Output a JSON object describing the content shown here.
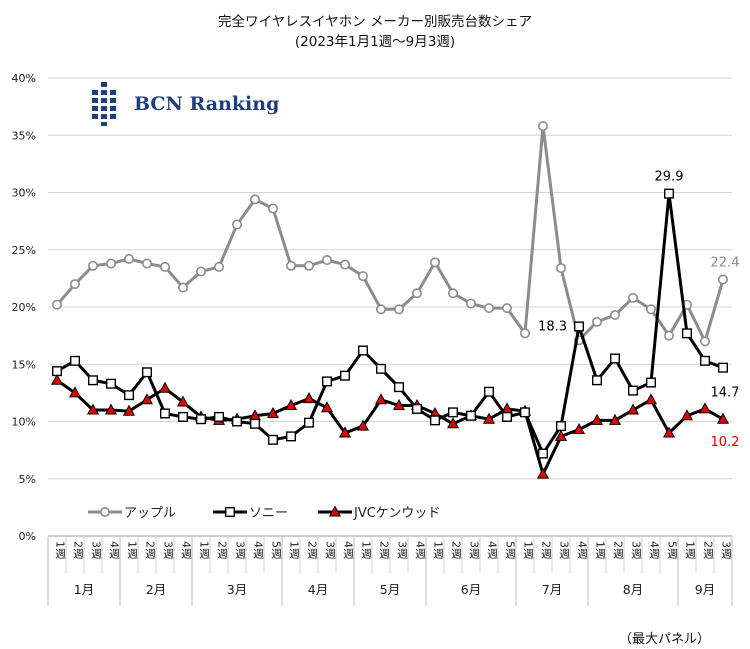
{
  "chart_data": {
    "type": "line",
    "title": "完全ワイヤレスイヤホン メーカー別販売台数シェア",
    "subtitle": "(2023年1月1週～9月3週)",
    "xlabel": "",
    "ylabel": "",
    "ylim": [
      0,
      40
    ],
    "yticks": [
      "0%",
      "5%",
      "10%",
      "15%",
      "20%",
      "25%",
      "30%",
      "35%",
      "40%"
    ],
    "grid": true,
    "legend": "lower-left",
    "week_labels": [
      "1週",
      "2週",
      "3週",
      "4週",
      "1週",
      "2週",
      "3週",
      "4週",
      "1週",
      "2週",
      "3週",
      "4週",
      "5週",
      "1週",
      "2週",
      "3週",
      "4週",
      "1週",
      "2週",
      "3週",
      "4週",
      "1週",
      "2週",
      "3週",
      "4週",
      "5週",
      "1週",
      "2週",
      "3週",
      "4週",
      "1週",
      "2週",
      "3週",
      "4週",
      "5週",
      "1週",
      "2週",
      "3週"
    ],
    "months": [
      {
        "label": "1月",
        "weeks": 4
      },
      {
        "label": "2月",
        "weeks": 4
      },
      {
        "label": "3月",
        "weeks": 5
      },
      {
        "label": "4月",
        "weeks": 4
      },
      {
        "label": "5月",
        "weeks": 4
      },
      {
        "label": "6月",
        "weeks": 5
      },
      {
        "label": "7月",
        "weeks": 4
      },
      {
        "label": "8月",
        "weeks": 5
      },
      {
        "label": "9月",
        "weeks": 3
      }
    ],
    "series": [
      {
        "name": "アップル",
        "color": "#8c8c8c",
        "marker": "circle",
        "values": [
          20.2,
          22.0,
          23.6,
          23.8,
          24.2,
          23.8,
          23.5,
          21.7,
          23.1,
          23.5,
          27.2,
          29.4,
          28.6,
          23.6,
          23.6,
          24.1,
          23.7,
          22.7,
          19.8,
          19.8,
          21.2,
          23.9,
          21.2,
          20.3,
          19.9,
          19.9,
          17.7,
          35.8,
          23.4,
          17.1,
          18.7,
          19.3,
          20.8,
          19.8,
          17.5,
          20.2,
          17.0,
          22.4
        ]
      },
      {
        "name": "ソニー",
        "color": "#000000",
        "marker": "square",
        "values": [
          14.4,
          15.3,
          13.6,
          13.3,
          12.3,
          14.3,
          10.7,
          10.4,
          10.2,
          10.4,
          10.0,
          9.8,
          8.4,
          8.7,
          9.9,
          13.5,
          14.0,
          16.2,
          14.6,
          13.0,
          11.1,
          10.1,
          10.8,
          10.5,
          12.6,
          10.4,
          10.8,
          7.2,
          9.6,
          18.3,
          13.6,
          15.5,
          12.7,
          13.4,
          29.9,
          17.7,
          15.3,
          14.7
        ]
      },
      {
        "name": "JVCケンウッド",
        "color": "#000000",
        "marker": "triangle",
        "marker_fill": "#e00000",
        "values": [
          13.6,
          12.5,
          11.0,
          11.0,
          10.9,
          11.9,
          12.9,
          11.7,
          10.4,
          10.1,
          10.2,
          10.5,
          10.7,
          11.4,
          12.0,
          11.2,
          9.0,
          9.6,
          11.9,
          11.4,
          11.4,
          10.7,
          9.8,
          10.5,
          10.2,
          11.1,
          10.9,
          5.4,
          8.7,
          9.3,
          10.1,
          10.1,
          11.0,
          11.9,
          9.0,
          10.5,
          11.1,
          10.2
        ]
      }
    ],
    "annotations": [
      {
        "text": "29.9",
        "color": "#000000"
      },
      {
        "text": "18.3",
        "color": "#000000"
      },
      {
        "text": "22.4",
        "color": "#8c8c8c"
      },
      {
        "text": "14.7",
        "color": "#000000"
      },
      {
        "text": "10.2",
        "color": "#e00000"
      }
    ]
  },
  "logo": {
    "text": "BCN Ranking",
    "color": "#1d3f7a"
  },
  "footnote": "（最大パネル）"
}
